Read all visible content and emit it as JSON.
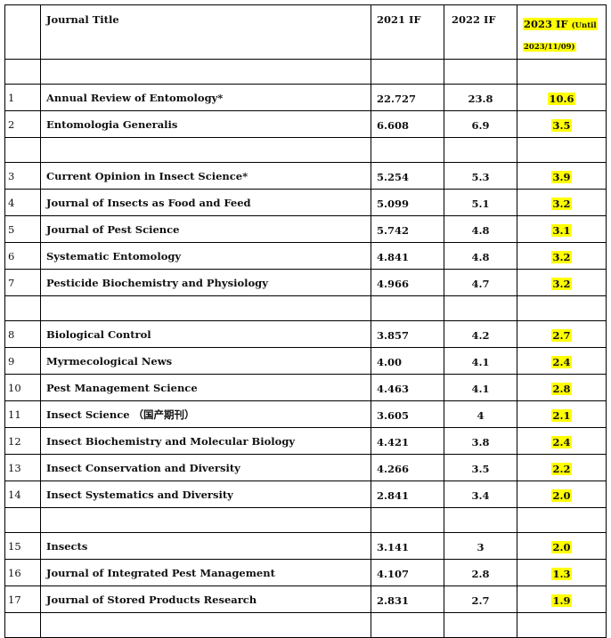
{
  "header": {
    "no": "",
    "title": "Journal Title",
    "if2021": "2021 IF",
    "if2022": "2022 IF",
    "if2023_main": "2023   IF",
    "if2023_until": "(Until",
    "if2023_date": "2023/11/09)"
  },
  "rows": [
    {
      "type": "blank"
    },
    {
      "type": "data",
      "no": "1",
      "title": "Annual Review of Entomology*",
      "if2021": "22.727",
      "if2022": "23.8",
      "if2023": "10.6"
    },
    {
      "type": "data",
      "no": "2",
      "title": "Entomologia Generalis",
      "if2021": "6.608",
      "if2022": "6.9",
      "if2023": "3.5"
    },
    {
      "type": "blank"
    },
    {
      "type": "data",
      "no": "3",
      "title": "Current Opinion in Insect Science*",
      "if2021": "5.254",
      "if2022": "5.3",
      "if2023": "3.9"
    },
    {
      "type": "data",
      "no": "4",
      "title": "Journal of Insects as Food and Feed",
      "if2021": "5.099",
      "if2022": "5.1",
      "if2023": "3.2"
    },
    {
      "type": "data",
      "no": "5",
      "title": "Journal of Pest Science",
      "if2021": "5.742",
      "if2022": "4.8",
      "if2023": "3.1"
    },
    {
      "type": "data",
      "no": "6",
      "title": "Systematic Entomology",
      "if2021": "4.841",
      "if2022": "4.8",
      "if2023": "3.2"
    },
    {
      "type": "data",
      "no": "7",
      "title": "Pesticide Biochemistry and Physiology",
      "if2021": "4.966",
      "if2022": "4.7",
      "if2023": "3.2"
    },
    {
      "type": "blank"
    },
    {
      "type": "data",
      "no": "8",
      "title": "Biological Control",
      "if2021": "3.857",
      "if2022": "4.2",
      "if2023": "2.7"
    },
    {
      "type": "data",
      "no": "9",
      "title": "Myrmecological News",
      "if2021": "4.00",
      "if2022": "4.1",
      "if2023": "2.4"
    },
    {
      "type": "data",
      "no": "10",
      "title": "Pest Management Science",
      "if2021": "4.463",
      "if2022": "4.1",
      "if2023": "2.8"
    },
    {
      "type": "data",
      "no": "11",
      "title": "Insect Science （国产期刊）",
      "if2021": "3.605",
      "if2022": "4",
      "if2023": "2.1"
    },
    {
      "type": "data",
      "no": "12",
      "title": "Insect Biochemistry and Molecular  Biology",
      "if2021": "4.421",
      "if2022": "3.8",
      "if2023": "2.4"
    },
    {
      "type": "data",
      "no": "13",
      "title": "Insect Conservation and Diversity",
      "if2021": "4.266",
      "if2022": "3.5",
      "if2023": "2.2"
    },
    {
      "type": "data",
      "no": "14",
      "title": "Insect Systematics and Diversity",
      "if2021": "2.841",
      "if2022": "3.4",
      "if2023": "2.0"
    },
    {
      "type": "blank"
    },
    {
      "type": "data",
      "no": "15",
      "title": "Insects",
      "if2021": "3.141",
      "if2022": "3",
      "if2023": "2.0"
    },
    {
      "type": "data",
      "no": "16",
      "title": "Journal of Integrated Pest Management",
      "if2021": "4.107",
      "if2022": "2.8",
      "if2023": "1.3"
    },
    {
      "type": "data",
      "no": "17",
      "title": "Journal of Stored Products Research",
      "if2021": "2.831",
      "if2022": "2.7",
      "if2023": "1.9"
    },
    {
      "type": "blank"
    }
  ],
  "colors": {
    "highlight": "#ffff00",
    "border": "#000000"
  }
}
